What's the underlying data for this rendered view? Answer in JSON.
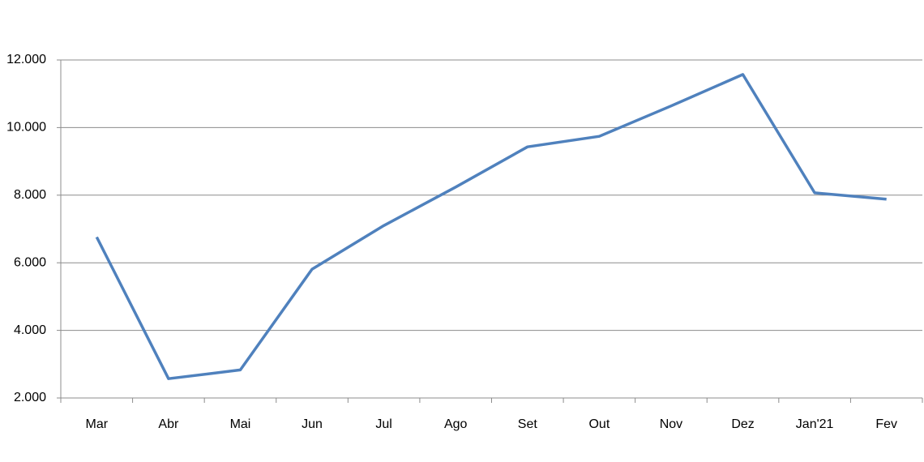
{
  "chart_data": {
    "type": "line",
    "categories": [
      "Mar",
      "Abr",
      "Mai",
      "Jun",
      "Jul",
      "Ago",
      "Set",
      "Out",
      "Nov",
      "Dez",
      "Jan'21",
      "Fev"
    ],
    "values": [
      6760,
      2570,
      2830,
      5810,
      7100,
      8240,
      9430,
      9740,
      10640,
      11570,
      8070,
      7880
    ],
    "color": "#4f81bd",
    "ylim": [
      2000,
      12000
    ],
    "yticks": [
      {
        "value": 2000,
        "label": "2.000"
      },
      {
        "value": 4000,
        "label": "4.000"
      },
      {
        "value": 6000,
        "label": "6.000"
      },
      {
        "value": 8000,
        "label": "8.000"
      },
      {
        "value": 10000,
        "label": "10.000"
      },
      {
        "value": 12000,
        "label": "12.000"
      }
    ],
    "grid": true
  }
}
